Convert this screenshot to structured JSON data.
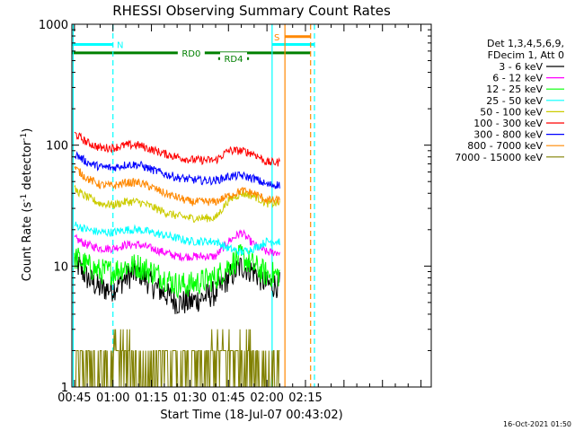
{
  "footer_timestamp": "16-Oct-2021 01:50",
  "chart_data": {
    "type": "line",
    "title": "RHESSI Observing Summary Count Rates",
    "xlabel": "Start Time (18-Jul-07 00:43:02)",
    "ylabel": "Count Rate (s",
    "ylabel_sup1": "-1",
    "ylabel_mid": " detector",
    "ylabel_sup2": "-1",
    "ylabel_end": ")",
    "y_scale": "log",
    "ylim": [
      1,
      1000
    ],
    "xlim_minutes": [
      44,
      184
    ],
    "x_ticks": [
      {
        "label": "00:45",
        "minute": 45
      },
      {
        "label": "01:00",
        "minute": 60
      },
      {
        "label": "01:15",
        "minute": 75
      },
      {
        "label": "01:30",
        "minute": 90
      },
      {
        "label": "01:45",
        "minute": 105
      },
      {
        "label": "02:00",
        "minute": 120
      },
      {
        "label": "02:15",
        "minute": 135
      }
    ],
    "y_ticks": [
      {
        "label": "1",
        "value": 1
      },
      {
        "label": "10",
        "value": 10
      },
      {
        "label": "100",
        "value": 100
      },
      {
        "label": "1000",
        "value": 1000
      }
    ],
    "legend": {
      "position": "right",
      "header1": "Det 1,3,4,5,6,9,",
      "header2": "FDecim 1, Att 0"
    },
    "series": [
      {
        "name": "3 - 6 keV",
        "color": "#000000",
        "x": [
          45,
          50,
          55,
          60,
          65,
          70,
          75,
          80,
          85,
          90,
          95,
          100,
          105,
          110,
          115,
          120,
          125
        ],
        "y": [
          11,
          8,
          6.5,
          6.5,
          8,
          9,
          7,
          6,
          5,
          5,
          5.5,
          6,
          8,
          10,
          9,
          7,
          7
        ]
      },
      {
        "name": "6 - 12 keV",
        "color": "#ff00ff",
        "x": [
          45,
          50,
          55,
          60,
          65,
          70,
          75,
          80,
          85,
          90,
          95,
          100,
          105,
          110,
          115,
          120,
          125
        ],
        "y": [
          17,
          15,
          14,
          14,
          15,
          15,
          14,
          13,
          12,
          12,
          12,
          12,
          16,
          19,
          15,
          13,
          13
        ]
      },
      {
        "name": "12 - 25 keV",
        "color": "#00ff00",
        "x": [
          45,
          50,
          55,
          60,
          65,
          70,
          75,
          80,
          85,
          90,
          95,
          100,
          105,
          110,
          115,
          120,
          125
        ],
        "y": [
          12,
          10,
          9,
          9,
          10,
          10,
          9,
          8,
          7,
          7,
          7.5,
          8,
          10,
          12,
          10,
          8.5,
          8.5
        ]
      },
      {
        "name": "25 - 50 keV",
        "color": "#00ffff",
        "x": [
          45,
          50,
          55,
          60,
          65,
          70,
          75,
          80,
          85,
          90,
          95,
          100,
          105,
          110,
          115,
          120,
          125
        ],
        "y": [
          22,
          20,
          19,
          19,
          20,
          20,
          19,
          18,
          17,
          16,
          16,
          16,
          14,
          13,
          14,
          16,
          16
        ]
      },
      {
        "name": "50 - 100 keV",
        "color": "#cccc00",
        "x": [
          45,
          50,
          55,
          60,
          65,
          70,
          75,
          80,
          85,
          90,
          95,
          100,
          105,
          110,
          115,
          120,
          125
        ],
        "y": [
          43,
          37,
          33,
          32,
          34,
          34,
          31,
          28,
          26,
          25,
          25,
          25,
          35,
          40,
          38,
          33,
          33
        ]
      },
      {
        "name": "100 - 300 keV",
        "color": "#ff0000",
        "x": [
          45,
          50,
          55,
          60,
          65,
          70,
          75,
          80,
          85,
          90,
          95,
          100,
          105,
          110,
          115,
          120,
          125
        ],
        "y": [
          125,
          105,
          95,
          95,
          100,
          100,
          92,
          85,
          80,
          76,
          75,
          75,
          90,
          90,
          85,
          72,
          72
        ]
      },
      {
        "name": "300 - 800 keV",
        "color": "#0000ff",
        "x": [
          45,
          50,
          55,
          60,
          65,
          70,
          75,
          80,
          85,
          90,
          95,
          100,
          105,
          110,
          115,
          120,
          125
        ],
        "y": [
          85,
          72,
          66,
          65,
          69,
          69,
          63,
          58,
          54,
          52,
          51,
          51,
          55,
          56,
          53,
          47,
          47
        ]
      },
      {
        "name": "800 - 7000 keV",
        "color": "#ff8800",
        "x": [
          45,
          50,
          55,
          60,
          65,
          70,
          75,
          80,
          85,
          90,
          95,
          100,
          105,
          110,
          115,
          120,
          125
        ],
        "y": [
          65,
          53,
          47,
          46,
          49,
          49,
          45,
          40,
          37,
          34,
          34,
          34,
          38,
          42,
          40,
          35,
          35
        ]
      },
      {
        "name": "7000 - 15000 keV",
        "color": "#808000",
        "x": [
          45,
          50,
          55,
          60,
          65,
          70,
          75,
          80,
          85,
          90,
          95,
          100,
          105,
          110,
          115,
          120,
          125
        ],
        "y": [
          1.5,
          1.5,
          1.5,
          1.5,
          1.6,
          1.6,
          1.5,
          1.5,
          1.4,
          1.4,
          1.4,
          1.4,
          1.5,
          1.6,
          1.5,
          1.4,
          1.4
        ]
      }
    ],
    "vertical_markers": [
      {
        "minute": 44.5,
        "color": "#00ffff",
        "dashed": false
      },
      {
        "minute": 60,
        "color": "#00ffff",
        "dashed": true
      },
      {
        "minute": 122,
        "color": "#00ffff",
        "dashed": false
      },
      {
        "minute": 138.5,
        "color": "#00ffff",
        "dashed": true
      },
      {
        "minute": 127,
        "color": "#ff8800",
        "dashed": false
      },
      {
        "minute": 137,
        "color": "#ff8800",
        "dashed": true
      }
    ],
    "state_bars": [
      {
        "label": "N",
        "color": "#00ffff",
        "x_start": 44,
        "x_end": 60,
        "y": 680
      },
      {
        "label": "",
        "color": "#00ffff",
        "x_start": 122,
        "x_end": 138.5,
        "y": 680
      },
      {
        "label": "S",
        "color": "#ff8800",
        "x_start": 127,
        "x_end": 137,
        "y": 790
      },
      {
        "label": "RD0",
        "color": "#008000",
        "x_start": 44,
        "x_end": 137,
        "y": 580
      },
      {
        "label": "RD4",
        "color": "#008000",
        "x_start": 101,
        "x_end": 113,
        "y": 520
      }
    ]
  }
}
